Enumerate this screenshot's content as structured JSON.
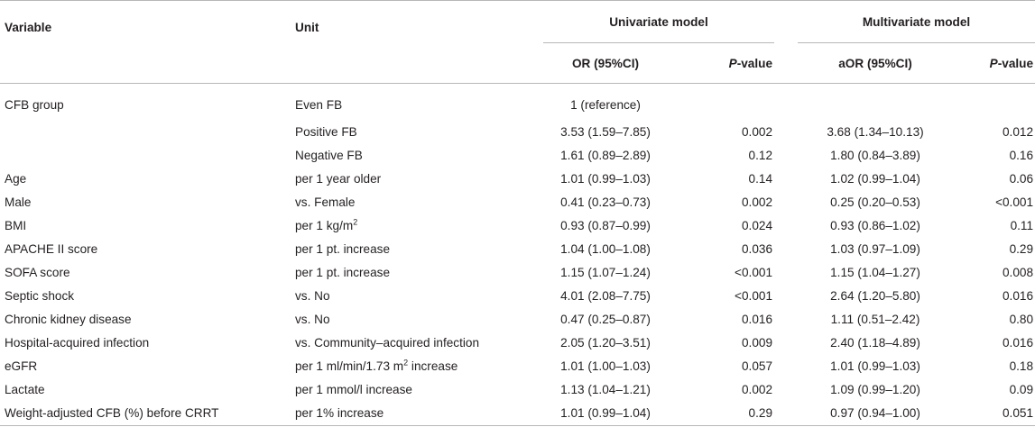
{
  "headers": {
    "variable": "Variable",
    "unit": "Unit",
    "univariate": "Univariate model",
    "multivariate": "Multivariate model",
    "or": "OR (95%CI)",
    "p_italic": "P",
    "p_rest": "-value",
    "aor": "aOR (95%CI)"
  },
  "rows": [
    {
      "variable": "CFB group",
      "unit": "Even FB",
      "or": "1 (reference)",
      "p": "",
      "aor": "",
      "ap": ""
    },
    {
      "variable": "",
      "unit": "Positive FB",
      "or": "3.53 (1.59–7.85)",
      "p": "0.002",
      "aor": "3.68 (1.34–10.13)",
      "ap": "0.012"
    },
    {
      "variable": "",
      "unit": "Negative FB",
      "or": "1.61 (0.89–2.89)",
      "p": "0.12",
      "aor": "1.80 (0.84–3.89)",
      "ap": "0.16"
    },
    {
      "variable": "Age",
      "unit": "per 1 year older",
      "or": "1.01 (0.99–1.03)",
      "p": "0.14",
      "aor": "1.02 (0.99–1.04)",
      "ap": "0.06"
    },
    {
      "variable": "Male",
      "unit": "vs. Female",
      "or": "0.41 (0.23–0.73)",
      "p": "0.002",
      "aor": "0.25 (0.20–0.53)",
      "ap": "<0.001"
    },
    {
      "variable": "BMI",
      "unit": "per 1 kg/m",
      "unit_sup": "2",
      "unit_after": "",
      "or": "0.93 (0.87–0.99)",
      "p": "0.024",
      "aor": "0.93 (0.86–1.02)",
      "ap": "0.11"
    },
    {
      "variable": "APACHE II score",
      "unit": "per 1 pt. increase",
      "or": "1.04 (1.00–1.08)",
      "p": "0.036",
      "aor": "1.03 (0.97–1.09)",
      "ap": "0.29"
    },
    {
      "variable": "SOFA score",
      "unit": "per 1 pt. increase",
      "or": "1.15 (1.07–1.24)",
      "p": "<0.001",
      "aor": "1.15 (1.04–1.27)",
      "ap": "0.008"
    },
    {
      "variable": "Septic shock",
      "unit": "vs. No",
      "or": "4.01 (2.08–7.75)",
      "p": "<0.001",
      "aor": "2.64 (1.20–5.80)",
      "ap": "0.016"
    },
    {
      "variable": "Chronic kidney disease",
      "unit": "vs. No",
      "or": "0.47 (0.25–0.87)",
      "p": "0.016",
      "aor": "1.11 (0.51–2.42)",
      "ap": "0.80"
    },
    {
      "variable": "Hospital-acquired infection",
      "unit": "vs. Community–acquired infection",
      "or": "2.05 (1.20–3.51)",
      "p": "0.009",
      "aor": "2.40 (1.18–4.89)",
      "ap": "0.016"
    },
    {
      "variable": "eGFR",
      "unit": "per 1 ml/min/1.73 m",
      "unit_sup": "2",
      "unit_after": " increase",
      "or": "1.01 (1.00–1.03)",
      "p": "0.057",
      "aor": "1.01 (0.99–1.03)",
      "ap": "0.18"
    },
    {
      "variable": "Lactate",
      "unit": "per 1 mmol/l increase",
      "or": "1.13 (1.04–1.21)",
      "p": "0.002",
      "aor": "1.09 (0.99–1.20)",
      "ap": "0.09"
    },
    {
      "variable": "Weight-adjusted CFB (%) before CRRT",
      "unit": "per 1% increase",
      "or": "1.01 (0.99–1.04)",
      "p": "0.29",
      "aor": "0.97 (0.94–1.00)",
      "ap": "0.051"
    }
  ]
}
